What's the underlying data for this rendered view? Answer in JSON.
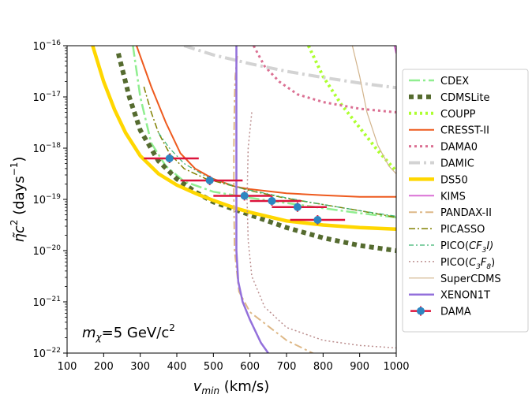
{
  "chart_data": {
    "type": "line",
    "annotation": {
      "prefix": "m",
      "sub": "χ",
      "mid": "=5 GeV/c",
      "sup": "2"
    },
    "xlabel": {
      "main": "v",
      "sub": "min",
      "rest": " (km/s)"
    },
    "ylabel": {
      "main": "η̃c",
      "sup1": "2",
      "mid": " (days",
      "sup2": "−1",
      "end": ")"
    },
    "xlim": [
      100,
      1000
    ],
    "ylim_log10": [
      -22,
      -16
    ],
    "xticks": [
      100,
      200,
      300,
      400,
      500,
      600,
      700,
      800,
      900,
      1000
    ],
    "xtick_labels": [
      "100",
      "200",
      "300",
      "400",
      "500",
      "600",
      "700",
      "800",
      "900",
      "1000"
    ],
    "yticks_exp": [
      -22,
      -21,
      -20,
      -19,
      -18,
      -17,
      -16
    ],
    "ytick_base": "10",
    "ytick_exps": [
      "−22",
      "−21",
      "−20",
      "−19",
      "−18",
      "−17",
      "−16"
    ],
    "series": [
      {
        "name": "CDEX",
        "color": "#90ee90",
        "width": 2.5,
        "dash": "14,4,3,4",
        "points": [
          [
            280,
            -16
          ],
          [
            300,
            -17
          ],
          [
            330,
            -17.9
          ],
          [
            370,
            -18.35
          ],
          [
            420,
            -18.65
          ],
          [
            500,
            -18.85
          ],
          [
            600,
            -18.97
          ],
          [
            700,
            -19.07
          ],
          [
            800,
            -19.17
          ],
          [
            900,
            -19.27
          ],
          [
            1000,
            -19.35
          ]
        ]
      },
      {
        "name": "CDMSLite",
        "color": "#556b2f",
        "width": 6,
        "dash": "6,5",
        "points": [
          [
            240,
            -16.15
          ],
          [
            270,
            -17
          ],
          [
            300,
            -17.65
          ],
          [
            350,
            -18.25
          ],
          [
            400,
            -18.6
          ],
          [
            450,
            -18.85
          ],
          [
            500,
            -19.05
          ],
          [
            560,
            -19.2
          ],
          [
            600,
            -19.3
          ],
          [
            700,
            -19.55
          ],
          [
            800,
            -19.75
          ],
          [
            900,
            -19.9
          ],
          [
            1000,
            -20.0
          ]
        ]
      },
      {
        "name": "COUPP",
        "color": "#adff2f",
        "width": 4,
        "dash": "3,4",
        "points": [
          [
            760,
            -16
          ],
          [
            800,
            -16.6
          ],
          [
            850,
            -17.15
          ],
          [
            900,
            -17.6
          ],
          [
            950,
            -18.05
          ],
          [
            1000,
            -18.45
          ]
        ]
      },
      {
        "name": "CRESST-II",
        "color": "#ee5a1e",
        "width": 2,
        "dash": "",
        "points": [
          [
            290,
            -16
          ],
          [
            330,
            -16.8
          ],
          [
            370,
            -17.5
          ],
          [
            410,
            -18.1
          ],
          [
            450,
            -18.4
          ],
          [
            500,
            -18.6
          ],
          [
            560,
            -18.75
          ],
          [
            600,
            -18.8
          ],
          [
            700,
            -18.88
          ],
          [
            800,
            -18.92
          ],
          [
            900,
            -18.95
          ],
          [
            1000,
            -18.95
          ]
        ]
      },
      {
        "name": "DAMA0",
        "color": "#db7093",
        "width": 3,
        "dash": "3,4",
        "points": [
          [
            610,
            -16
          ],
          [
            640,
            -16.4
          ],
          [
            680,
            -16.7
          ],
          [
            730,
            -16.95
          ],
          [
            800,
            -17.1
          ],
          [
            900,
            -17.23
          ],
          [
            1000,
            -17.3
          ]
        ]
      },
      {
        "name": "DAMIC",
        "color": "#d3d3d3",
        "width": 4,
        "dash": "14,5,3,5",
        "points": [
          [
            420,
            -16
          ],
          [
            500,
            -16.18
          ],
          [
            600,
            -16.35
          ],
          [
            700,
            -16.5
          ],
          [
            800,
            -16.62
          ],
          [
            900,
            -16.73
          ],
          [
            1000,
            -16.82
          ]
        ]
      },
      {
        "name": "DS50",
        "color": "#ffd700",
        "width": 4.5,
        "dash": "",
        "points": [
          [
            170,
            -16
          ],
          [
            200,
            -16.7
          ],
          [
            230,
            -17.25
          ],
          [
            260,
            -17.7
          ],
          [
            300,
            -18.15
          ],
          [
            350,
            -18.5
          ],
          [
            400,
            -18.72
          ],
          [
            450,
            -18.88
          ],
          [
            500,
            -19.02
          ],
          [
            560,
            -19.17
          ],
          [
            600,
            -19.25
          ],
          [
            700,
            -19.42
          ],
          [
            800,
            -19.5
          ],
          [
            900,
            -19.55
          ],
          [
            1000,
            -19.58
          ]
        ]
      },
      {
        "name": "KIMS",
        "color": "#da70d6",
        "width": 2,
        "dash": "",
        "points": [
          [
            995,
            -16
          ],
          [
            1000,
            -16.15
          ]
        ]
      },
      {
        "name": "PANDAX-II",
        "color": "#deb887",
        "width": 2,
        "dash": "10,4,3,4",
        "points": [
          [
            565,
            -16.2
          ],
          [
            560,
            -16.6
          ],
          [
            558,
            -17
          ],
          [
            556,
            -18
          ],
          [
            556,
            -19
          ],
          [
            558,
            -20
          ],
          [
            570,
            -20.8
          ],
          [
            600,
            -21.2
          ],
          [
            700,
            -21.75
          ],
          [
            800,
            -22.1
          ],
          [
            850,
            -22.3
          ]
        ]
      },
      {
        "name": "PICASSO",
        "color": "#808000",
        "width": 1.5,
        "dash": "8,3,2,3",
        "points": [
          [
            310,
            -16.8
          ],
          [
            330,
            -17.3
          ],
          [
            350,
            -17.7
          ],
          [
            380,
            -18.1
          ],
          [
            420,
            -18.4
          ],
          [
            480,
            -18.6
          ],
          [
            560,
            -18.75
          ],
          [
            600,
            -18.83
          ],
          [
            700,
            -18.98
          ],
          [
            800,
            -19.1
          ],
          [
            900,
            -19.22
          ],
          [
            1000,
            -19.35
          ]
        ]
      },
      {
        "name": "PICO(CF3I)",
        "color": "#3cb371",
        "width": 1.2,
        "dash": "6,3,2,3",
        "points": [
          [
            350,
            -17.7
          ],
          [
            380,
            -18
          ],
          [
            420,
            -18.3
          ],
          [
            480,
            -18.55
          ],
          [
            560,
            -18.75
          ],
          [
            600,
            -18.82
          ],
          [
            700,
            -18.97
          ],
          [
            800,
            -19.1
          ],
          [
            900,
            -19.22
          ],
          [
            1000,
            -19.33
          ]
        ]
      },
      {
        "name": "PICO(C3F8)",
        "color": "#bc8f8f",
        "width": 1.5,
        "dash": "2,3",
        "points": [
          [
            605,
            -17.3
          ],
          [
            595,
            -18
          ],
          [
            592,
            -19
          ],
          [
            595,
            -19.8
          ],
          [
            605,
            -20.5
          ],
          [
            640,
            -21.1
          ],
          [
            700,
            -21.5
          ],
          [
            800,
            -21.75
          ],
          [
            900,
            -21.85
          ],
          [
            1000,
            -21.9
          ]
        ]
      },
      {
        "name": "SuperCDMS",
        "color": "#d2b48c",
        "width": 1.2,
        "dash": "",
        "points": [
          [
            880,
            -16
          ],
          [
            900,
            -16.6
          ],
          [
            920,
            -17.3
          ],
          [
            950,
            -17.95
          ],
          [
            980,
            -18.35
          ],
          [
            1000,
            -18.5
          ]
        ]
      },
      {
        "name": "XENON1T",
        "color": "#9370db",
        "width": 2.5,
        "dash": "",
        "points": [
          [
            563,
            -16
          ],
          [
            563,
            -17
          ],
          [
            563,
            -18
          ],
          [
            563,
            -19
          ],
          [
            563,
            -20
          ],
          [
            568,
            -20.6
          ],
          [
            580,
            -21
          ],
          [
            600,
            -21.35
          ],
          [
            630,
            -21.8
          ],
          [
            650,
            -22
          ]
        ]
      }
    ],
    "dama_points": {
      "name": "DAMA",
      "color": "#2e86c1",
      "bar_color": "#dc143c",
      "points": [
        {
          "x": 380,
          "y": -18.2,
          "xerr": [
            310,
            460
          ]
        },
        {
          "x": 490,
          "y": -18.63,
          "xerr": [
            410,
            580
          ]
        },
        {
          "x": 585,
          "y": -18.93,
          "xerr": [
            500,
            660
          ]
        },
        {
          "x": 660,
          "y": -19.03,
          "xerr": [
            600,
            740
          ]
        },
        {
          "x": 730,
          "y": -19.15,
          "xerr": [
            660,
            810
          ]
        },
        {
          "x": 785,
          "y": -19.4,
          "xerr": [
            710,
            860
          ]
        }
      ]
    },
    "legend": {
      "placement": "right",
      "entries": [
        {
          "label": "CDEX"
        },
        {
          "label": "CDMSLite"
        },
        {
          "label": "COUPP"
        },
        {
          "label": "CRESST-II"
        },
        {
          "label": "DAMA0"
        },
        {
          "label": "DAMIC"
        },
        {
          "label": "DS50"
        },
        {
          "label": "KIMS"
        },
        {
          "label": "PANDAX-II"
        },
        {
          "label": "PICASSO"
        },
        {
          "label": "PICO(",
          "sub_label": "CF",
          "sub": "3",
          "tail": "I)"
        },
        {
          "label": "PICO(",
          "sub_label": "C",
          "sub": "3",
          "mid": "F",
          "sub2": "8",
          "tail": ")"
        },
        {
          "label": "SuperCDMS"
        },
        {
          "label": "XENON1T"
        },
        {
          "label": "DAMA"
        }
      ]
    }
  }
}
